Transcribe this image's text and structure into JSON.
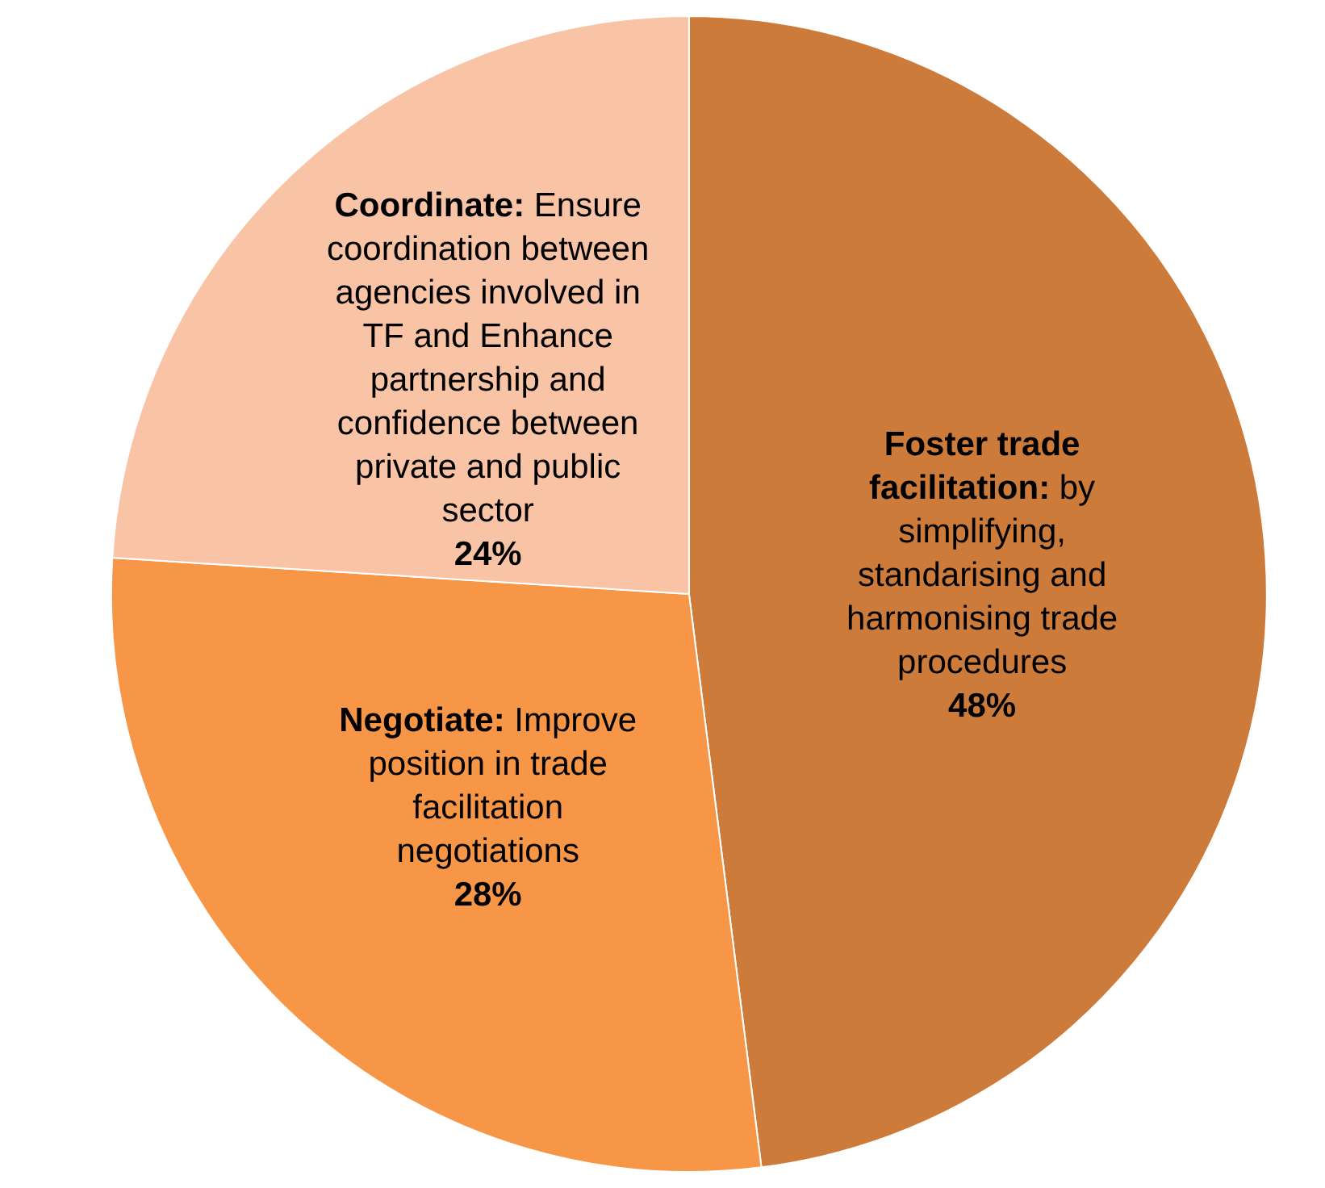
{
  "chart_data": {
    "type": "pie",
    "categories": [
      "Foster trade facilitation: by simplifying, standarising and harmonising trade procedures",
      "Negotiate: Improve position in trade facilitation negotiations",
      "Coordinate: Ensure coordination between agencies involved in TF and Enhance partnership and confidence between private and public sector"
    ],
    "values": [
      48,
      28,
      24
    ],
    "colors": [
      "#cd7b3b",
      "#f79646",
      "#f9c3a6"
    ],
    "value_labels": [
      "48%",
      "28%",
      "24%"
    ]
  }
}
